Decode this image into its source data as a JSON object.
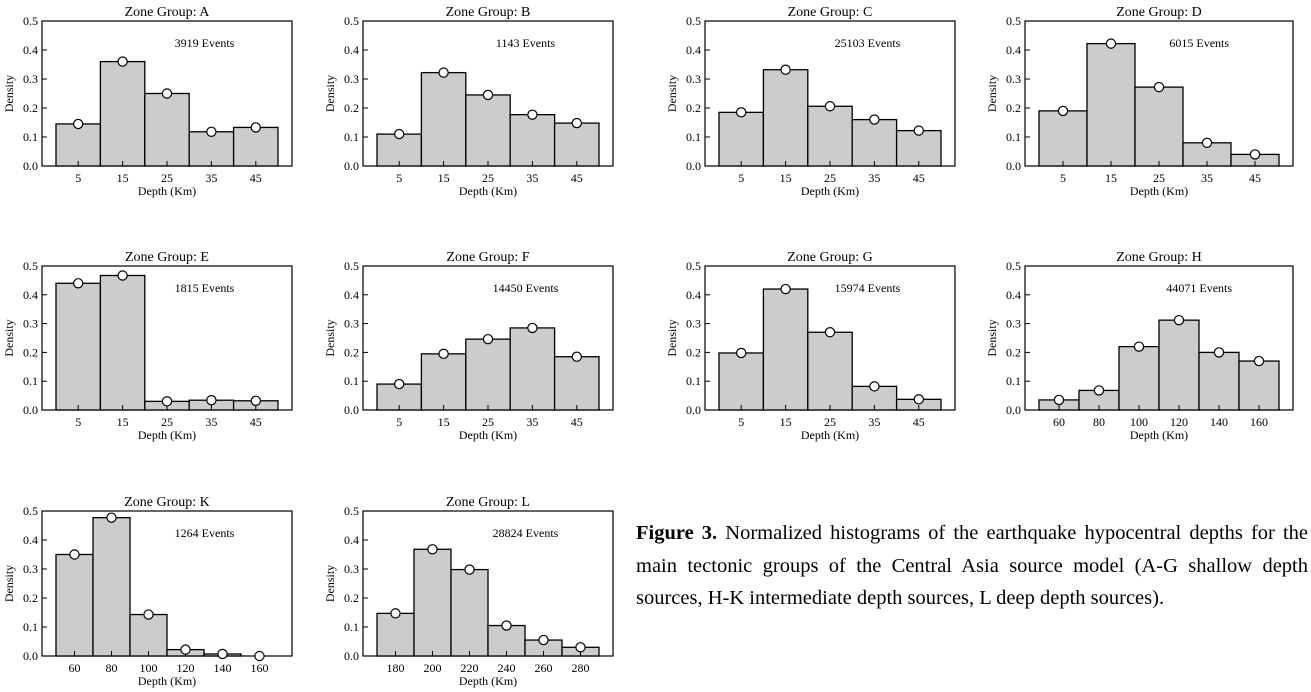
{
  "chart_data": [
    {
      "type": "bar",
      "title": "Zone Group: A",
      "annotation": "3919 Events",
      "xlabel": "Depth (Km)",
      "ylabel": "Density",
      "ylim": [
        0,
        0.5
      ],
      "yticks": [
        "0.0",
        "0.1",
        "0.2",
        "0.3",
        "0.4",
        "0.5"
      ],
      "categories": [
        "5",
        "15",
        "25",
        "35",
        "45"
      ],
      "values": [
        0.145,
        0.36,
        0.25,
        0.118,
        0.133
      ]
    },
    {
      "type": "bar",
      "title": "Zone Group: B",
      "annotation": "1143 Events",
      "xlabel": "Depth (Km)",
      "ylabel": "Density",
      "ylim": [
        0,
        0.5
      ],
      "yticks": [
        "0.0",
        "0.1",
        "0.2",
        "0.3",
        "0.4",
        "0.5"
      ],
      "categories": [
        "5",
        "15",
        "25",
        "35",
        "45"
      ],
      "values": [
        0.11,
        0.322,
        0.245,
        0.177,
        0.148
      ]
    },
    {
      "type": "bar",
      "title": "Zone Group: C",
      "annotation": "25103 Events",
      "xlabel": "Depth (Km)",
      "ylabel": "Density",
      "ylim": [
        0,
        0.5
      ],
      "yticks": [
        "0.0",
        "0.1",
        "0.2",
        "0.3",
        "0.4",
        "0.5"
      ],
      "categories": [
        "5",
        "15",
        "25",
        "35",
        "45"
      ],
      "values": [
        0.185,
        0.332,
        0.206,
        0.16,
        0.122
      ]
    },
    {
      "type": "bar",
      "title": "Zone Group: D",
      "annotation": "6015 Events",
      "xlabel": "Depth (Km)",
      "ylabel": "Density",
      "ylim": [
        0,
        0.5
      ],
      "yticks": [
        "0.0",
        "0.1",
        "0.2",
        "0.3",
        "0.4",
        "0.5"
      ],
      "categories": [
        "5",
        "15",
        "25",
        "35",
        "45"
      ],
      "values": [
        0.19,
        0.422,
        0.272,
        0.08,
        0.04
      ]
    },
    {
      "type": "bar",
      "title": "Zone Group: E",
      "annotation": "1815 Events",
      "xlabel": "Depth (Km)",
      "ylabel": "Density",
      "ylim": [
        0,
        0.5
      ],
      "yticks": [
        "0.0",
        "0.1",
        "0.2",
        "0.3",
        "0.4",
        "0.5"
      ],
      "categories": [
        "5",
        "15",
        "25",
        "35",
        "45"
      ],
      "values": [
        0.44,
        0.467,
        0.03,
        0.034,
        0.032
      ]
    },
    {
      "type": "bar",
      "title": "Zone Group: F",
      "annotation": "14450 Events",
      "xlabel": "Depth (Km)",
      "ylabel": "Density",
      "ylim": [
        0,
        0.5
      ],
      "yticks": [
        "0.0",
        "0.1",
        "0.2",
        "0.3",
        "0.4",
        "0.5"
      ],
      "categories": [
        "5",
        "15",
        "25",
        "35",
        "45"
      ],
      "values": [
        0.09,
        0.195,
        0.246,
        0.285,
        0.185
      ]
    },
    {
      "type": "bar",
      "title": "Zone Group: G",
      "annotation": "15974 Events",
      "xlabel": "Depth (Km)",
      "ylabel": "Density",
      "ylim": [
        0,
        0.5
      ],
      "yticks": [
        "0.0",
        "0.1",
        "0.2",
        "0.3",
        "0.4",
        "0.5"
      ],
      "categories": [
        "5",
        "15",
        "25",
        "35",
        "45"
      ],
      "values": [
        0.198,
        0.42,
        0.27,
        0.082,
        0.037
      ]
    },
    {
      "type": "bar",
      "title": "Zone Group: H",
      "annotation": "44071 Events",
      "xlabel": "Depth (Km)",
      "ylabel": "Density",
      "ylim": [
        0,
        0.5
      ],
      "yticks": [
        "0.0",
        "0.1",
        "0.2",
        "0.3",
        "0.4",
        "0.5"
      ],
      "categories": [
        "60",
        "80",
        "100",
        "120",
        "140",
        "160"
      ],
      "values": [
        0.035,
        0.068,
        0.22,
        0.312,
        0.2,
        0.17
      ]
    },
    {
      "type": "bar",
      "title": "Zone Group: K",
      "annotation": "1264 Events",
      "xlabel": "Depth (Km)",
      "ylabel": "Density",
      "ylim": [
        0,
        0.5
      ],
      "yticks": [
        "0.0",
        "0.1",
        "0.2",
        "0.3",
        "0.4",
        "0.5"
      ],
      "categories": [
        "60",
        "80",
        "100",
        "120",
        "140",
        "160"
      ],
      "values": [
        0.35,
        0.477,
        0.143,
        0.022,
        0.007,
        0.0
      ]
    },
    {
      "type": "bar",
      "title": "Zone Group: L",
      "annotation": "28824 Events",
      "xlabel": "Depth (Km)",
      "ylabel": "Density",
      "ylim": [
        0,
        0.5
      ],
      "yticks": [
        "0.0",
        "0.1",
        "0.2",
        "0.3",
        "0.4",
        "0.5"
      ],
      "categories": [
        "180",
        "200",
        "220",
        "240",
        "260",
        "280"
      ],
      "values": [
        0.147,
        0.368,
        0.298,
        0.105,
        0.055,
        0.03
      ]
    }
  ],
  "caption": {
    "label": "Figure 3.",
    "text": " Normalized histograms of the earthquake hypocentral depths for the main tectonic groups of the Central Asia source model (A-G shallow depth sources, H-K intermediate depth sources, L deep depth sources)."
  },
  "style": {
    "bar_fill": "#cccccc",
    "bar_stroke": "#000000",
    "marker_fill": "#ffffff"
  }
}
